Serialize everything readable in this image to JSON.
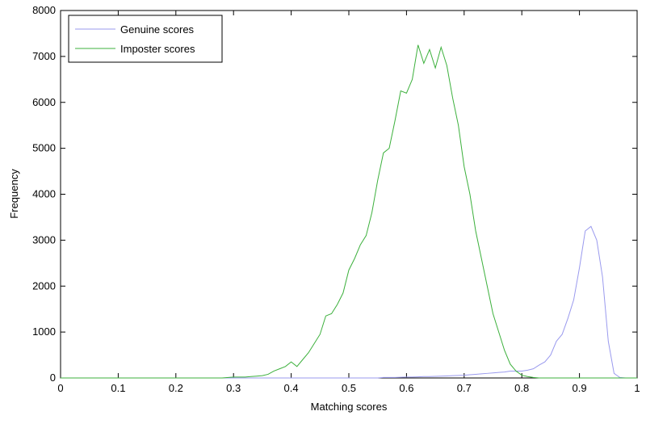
{
  "chart_data": {
    "type": "line",
    "xlabel": "Matching scores",
    "ylabel": "Frequency",
    "x": [
      0,
      0.1,
      0.2,
      0.28,
      0.3,
      0.31,
      0.32,
      0.33,
      0.34,
      0.35,
      0.36,
      0.37,
      0.38,
      0.39,
      0.4,
      0.41,
      0.42,
      0.43,
      0.44,
      0.45,
      0.46,
      0.47,
      0.48,
      0.49,
      0.5,
      0.51,
      0.52,
      0.53,
      0.54,
      0.55,
      0.56,
      0.57,
      0.58,
      0.59,
      0.6,
      0.61,
      0.62,
      0.63,
      0.64,
      0.65,
      0.66,
      0.67,
      0.68,
      0.69,
      0.7,
      0.71,
      0.72,
      0.73,
      0.74,
      0.75,
      0.76,
      0.77,
      0.78,
      0.79,
      0.8,
      0.81,
      0.82,
      0.83,
      0.84,
      0.85,
      0.86,
      0.87,
      0.88,
      0.89,
      0.9,
      0.91,
      0.92,
      0.93,
      0.94,
      0.95,
      0.96,
      0.97,
      0.98,
      0.99,
      1.0
    ],
    "series": [
      {
        "name": "Genuine scores",
        "color": "#9a9aee",
        "values": [
          0,
          0,
          0,
          0,
          0,
          0,
          0,
          0,
          0,
          0,
          0,
          0,
          0,
          0,
          0,
          0,
          0,
          0,
          0,
          0,
          0,
          0,
          0,
          0,
          0,
          0,
          0,
          0,
          0,
          0,
          10,
          10,
          10,
          15,
          20,
          20,
          25,
          30,
          30,
          35,
          40,
          45,
          50,
          55,
          60,
          70,
          80,
          90,
          100,
          110,
          120,
          130,
          150,
          150,
          150,
          170,
          200,
          280,
          350,
          500,
          800,
          950,
          1300,
          1700,
          2400,
          3200,
          3300,
          3000,
          2200,
          800,
          100,
          10,
          0,
          0,
          0
        ]
      },
      {
        "name": "Imposter scores",
        "color": "#3cb03c",
        "values": [
          0,
          0,
          0,
          0,
          20,
          20,
          20,
          30,
          40,
          50,
          80,
          150,
          200,
          250,
          350,
          250,
          400,
          550,
          750,
          950,
          1350,
          1400,
          1600,
          1850,
          2350,
          2600,
          2900,
          3100,
          3600,
          4300,
          4900,
          5000,
          5600,
          6250,
          6200,
          6500,
          7250,
          6850,
          7150,
          6750,
          7200,
          6800,
          6100,
          5500,
          4600,
          4000,
          3200,
          2600,
          2000,
          1400,
          1000,
          600,
          300,
          150,
          60,
          30,
          10,
          0,
          0,
          0,
          0,
          0,
          0,
          0,
          0,
          0,
          0,
          0,
          0,
          0,
          0,
          0,
          0,
          0,
          0
        ]
      }
    ],
    "xlim": [
      0,
      1
    ],
    "xticks": [
      0,
      0.1,
      0.2,
      0.3,
      0.4,
      0.5,
      0.6,
      0.7,
      0.8,
      0.9,
      1
    ],
    "ylim": [
      0,
      8000
    ],
    "yticks": [
      0,
      1000,
      2000,
      3000,
      4000,
      5000,
      6000,
      7000,
      8000
    ],
    "legend": "upper left",
    "grid": false
  }
}
